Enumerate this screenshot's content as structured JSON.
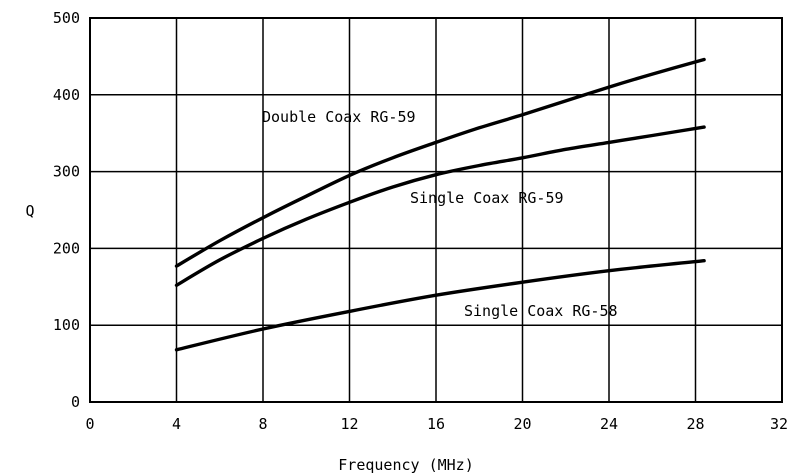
{
  "chart_data": {
    "type": "line",
    "title": "",
    "xlabel": "Frequency (MHz)",
    "ylabel": "Q",
    "xlim": [
      0,
      32
    ],
    "ylim": [
      0,
      500
    ],
    "x_ticks": [
      0,
      4,
      8,
      12,
      16,
      20,
      24,
      28,
      32
    ],
    "y_ticks": [
      0,
      100,
      200,
      300,
      400,
      500
    ],
    "grid": true,
    "series": [
      {
        "name": "Double Coax RG-59",
        "x": [
          4,
          6,
          8,
          10,
          12,
          14,
          16,
          18,
          20,
          22,
          24,
          26,
          28.4
        ],
        "y": [
          177,
          210,
          240,
          268,
          295,
          318,
          338,
          357,
          374,
          392,
          410,
          427,
          446
        ]
      },
      {
        "name": "Single Coax RG-59",
        "x": [
          4,
          6,
          8,
          10,
          12,
          14,
          16,
          18,
          20,
          22,
          24,
          26,
          28.4
        ],
        "y": [
          152,
          185,
          213,
          238,
          260,
          280,
          296,
          308,
          318,
          329,
          338,
          347,
          358
        ]
      },
      {
        "name": "Single Coax RG-58",
        "x": [
          4,
          8,
          12,
          16,
          20,
          24,
          28.4
        ],
        "y": [
          68,
          95,
          118,
          139,
          156,
          171,
          184
        ]
      }
    ],
    "annotations": [
      {
        "text": "Double Coax RG-59",
        "series": 0
      },
      {
        "text": "Single Coax RG-59",
        "series": 1
      },
      {
        "text": "Single Coax RG-58",
        "series": 2
      }
    ]
  }
}
